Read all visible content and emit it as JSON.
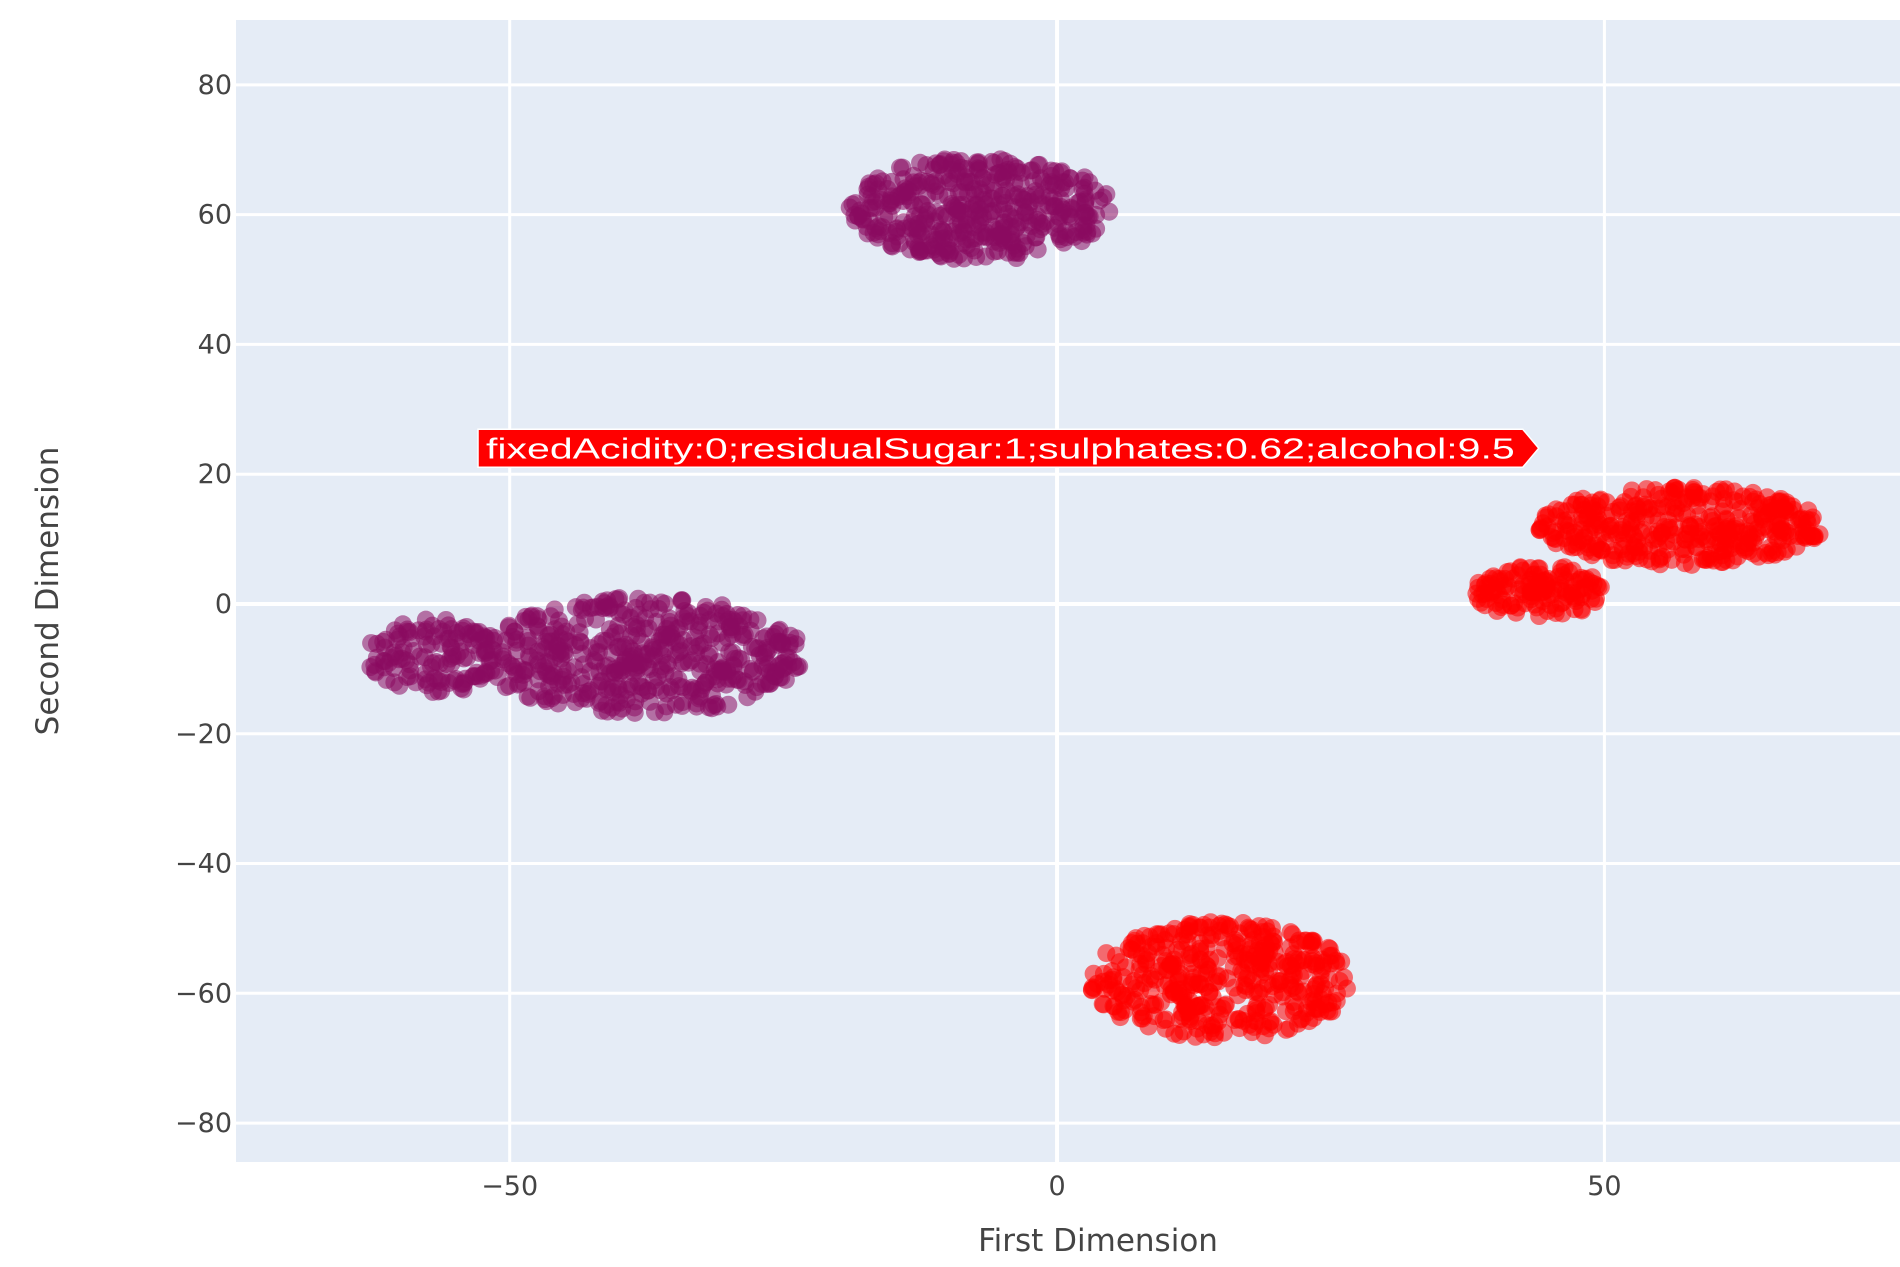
{
  "chart_data": {
    "type": "scatter",
    "xlabel": "First Dimension",
    "ylabel": "Second Dimension",
    "xlim": [
      -75,
      77
    ],
    "ylim": [
      -86,
      90
    ],
    "x_ticks": [
      -50,
      0,
      50
    ],
    "y_ticks": [
      -80,
      -60,
      -40,
      -20,
      0,
      20,
      40,
      60,
      80
    ],
    "x_tick_labels": [
      "−50",
      "0",
      "50"
    ],
    "y_tick_labels": [
      "−80",
      "−60",
      "−40",
      "−20",
      "0",
      "20",
      "40",
      "60",
      "80"
    ],
    "grid": true,
    "legend": "none",
    "background_color": "#e5ecf6",
    "series": [
      {
        "color": "#8b0b60",
        "clusters": [
          {
            "center": [
              -7,
              61
            ],
            "spread": [
              12,
              8
            ],
            "count": 420
          },
          {
            "center": [
              -38,
              -8
            ],
            "spread": [
              15,
              9
            ],
            "count": 480
          },
          {
            "center": [
              -57,
              -8
            ],
            "spread": [
              6,
              6
            ],
            "count": 130
          }
        ]
      },
      {
        "color": "#ff0000",
        "clusters": [
          {
            "center": [
              57,
              12
            ],
            "spread": [
              13,
              6
            ],
            "count": 380
          },
          {
            "center": [
              44,
              2
            ],
            "spread": [
              6,
              4
            ],
            "count": 130
          },
          {
            "center": [
              15,
              -58
            ],
            "spread": [
              12,
              9
            ],
            "count": 420
          }
        ]
      }
    ],
    "hover_point": {
      "x": 44,
      "y": 24
    },
    "tooltip": {
      "text": "fixedAcidity:0;residualSugar:1;sulphates:0.62;alcohol:9.5",
      "color": "#ff0000"
    }
  }
}
